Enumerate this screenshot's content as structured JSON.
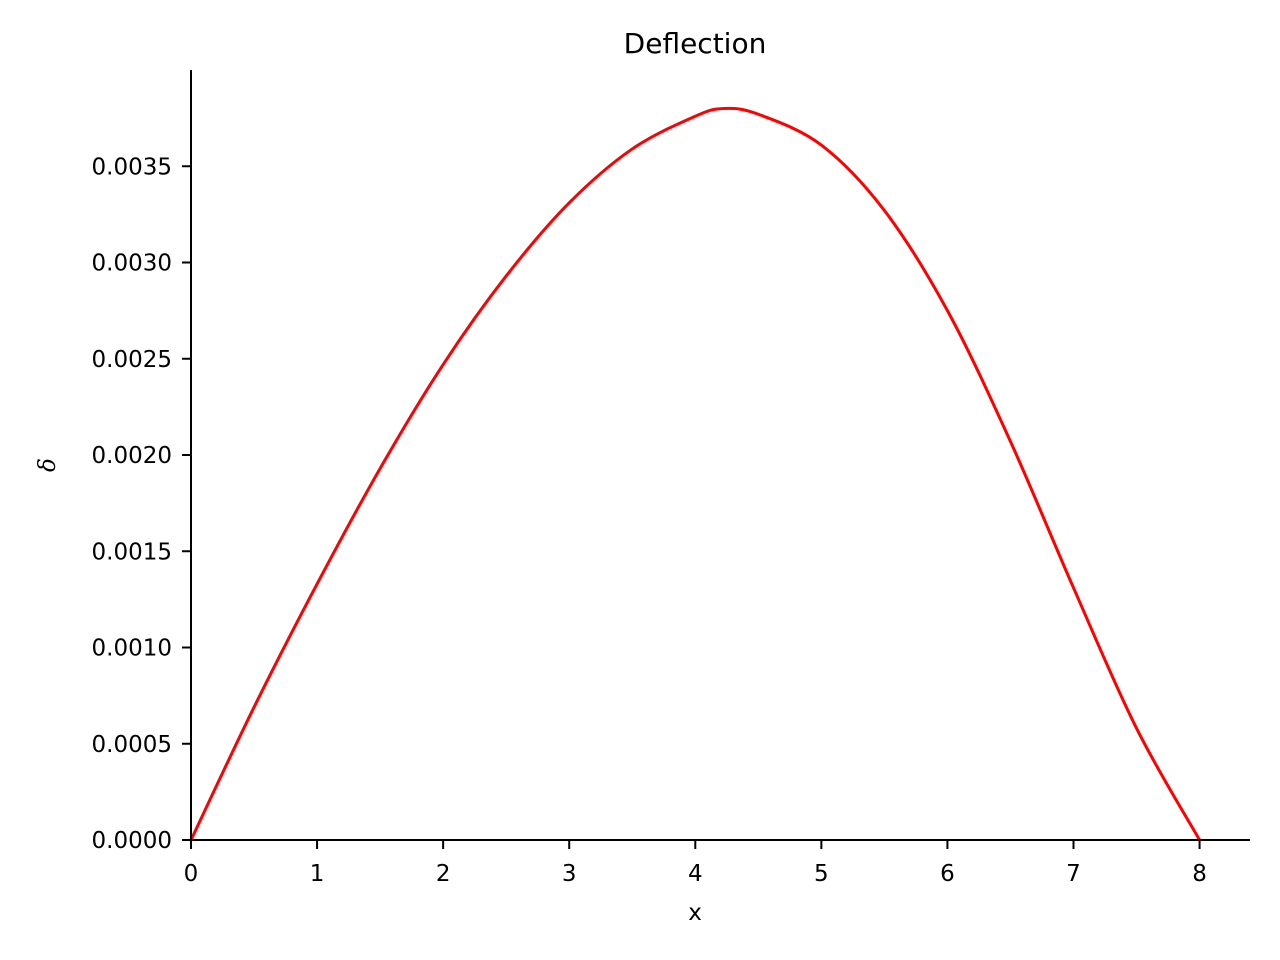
{
  "chart_data": {
    "type": "line",
    "title": "Deflection",
    "xlabel": "x",
    "ylabel": "δ",
    "xlim": [
      0,
      8.4
    ],
    "ylim": [
      0,
      0.004
    ],
    "x_ticks": [
      0,
      1,
      2,
      3,
      4,
      5,
      6,
      7,
      8
    ],
    "x_tick_labels": [
      "0",
      "1",
      "2",
      "3",
      "4",
      "5",
      "6",
      "7",
      "8"
    ],
    "y_ticks": [
      0,
      0.0005,
      0.001,
      0.0015,
      0.002,
      0.0025,
      0.003,
      0.0035
    ],
    "y_tick_labels": [
      "0.0000",
      "0.0005",
      "0.0010",
      "0.0015",
      "0.0020",
      "0.0025",
      "0.0030",
      "0.0035"
    ],
    "grid": false,
    "legend": "none",
    "series": [
      {
        "color": "#ff0000",
        "x": [
          0,
          0.5,
          1,
          1.5,
          2,
          2.5,
          3,
          3.5,
          4,
          4.23,
          4.5,
          5,
          5.5,
          6,
          6.5,
          7,
          7.5,
          8
        ],
        "values": [
          0,
          0.00069,
          0.00133,
          0.00193,
          0.00247,
          0.00293,
          0.00331,
          0.00359,
          0.00376,
          0.0038,
          0.00377,
          0.00361,
          0.00327,
          0.00275,
          0.00207,
          0.00131,
          0.00058,
          0
        ]
      }
    ]
  }
}
